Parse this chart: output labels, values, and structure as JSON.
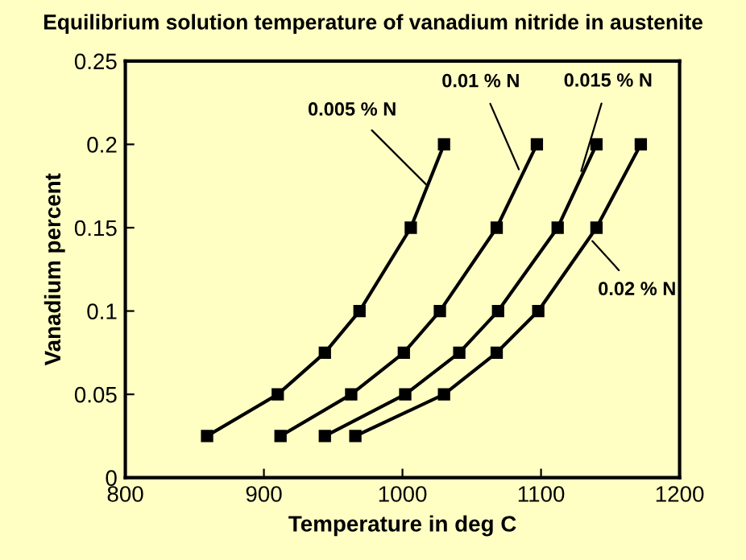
{
  "chart_data": {
    "type": "line",
    "title": "Equilibrium solution temperature of vanadium nitride in austenite",
    "xlabel": "Temperature in deg C",
    "ylabel": "Vanadium percent",
    "series": [
      {
        "color": "#000000",
        "x": [
          859,
          910,
          944,
          969,
          1006,
          1030
        ],
        "values": [
          0.025,
          0.05,
          0.075,
          0.1,
          0.15,
          0.2
        ]
      },
      {
        "color": "#000000",
        "x": [
          912,
          963,
          1001,
          1027,
          1068,
          1097
        ],
        "values": [
          0.025,
          0.05,
          0.075,
          0.1,
          0.15,
          0.2
        ]
      },
      {
        "color": "#000000",
        "x": [
          944,
          1002,
          1041,
          1069,
          1112,
          1140
        ],
        "values": [
          0.025,
          0.05,
          0.075,
          0.1,
          0.15,
          0.2
        ]
      },
      {
        "color": "#000000",
        "x": [
          966,
          1030,
          1068,
          1098,
          1140,
          1172
        ],
        "values": [
          0.025,
          0.05,
          0.075,
          0.1,
          0.15,
          0.2
        ]
      }
    ],
    "annotations": [
      {
        "text": "0.005 % N",
        "x": 1017,
        "y": 0.176
      },
      {
        "text": "0.01 % N",
        "x": 1084,
        "y": 0.185
      },
      {
        "text": "0.015 % N",
        "x": 1129,
        "y": 0.184
      },
      {
        "text": "0.02 % N",
        "x": 1137,
        "y": 0.142
      }
    ],
    "xlim": [
      800,
      1200
    ],
    "xticks": [
      800,
      900,
      1000,
      1100,
      1200
    ],
    "ylim": [
      0,
      0.25
    ],
    "yticks": [
      0,
      0.05,
      0.1,
      0.15,
      0.2,
      0.25
    ],
    "marker": "square",
    "line_style": "solid",
    "grid": false,
    "legend": false
  }
}
